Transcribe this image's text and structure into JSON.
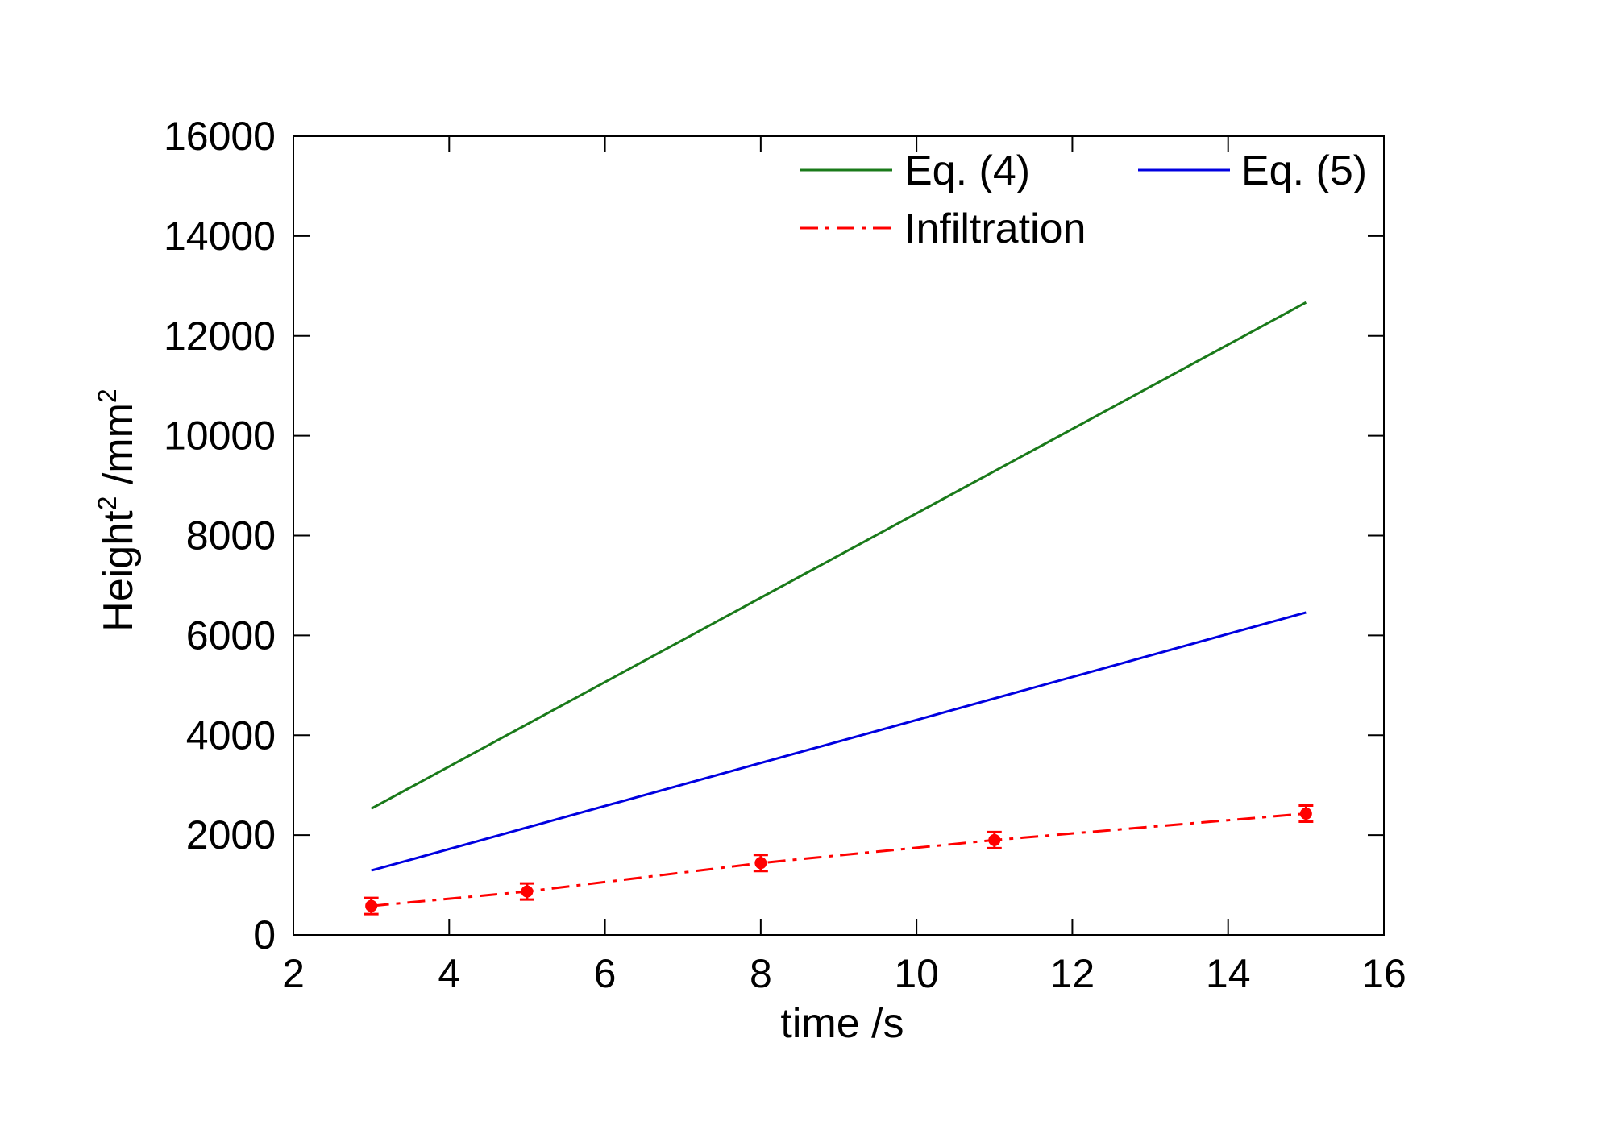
{
  "chart_data": {
    "type": "line",
    "title": "",
    "xlabel": "time /s",
    "ylabel": {
      "base": "Height",
      "base_sup": "2",
      "unit": " /mm",
      "unit_sup": "2"
    },
    "xlim": [
      2,
      16
    ],
    "ylim": [
      0,
      16000
    ],
    "xticks": [
      "2",
      "4",
      "6",
      "8",
      "10",
      "12",
      "14",
      "16"
    ],
    "yticks": [
      "0",
      "2000",
      "4000",
      "6000",
      "8000",
      "10000",
      "12000",
      "14000",
      "16000"
    ],
    "grid": false,
    "legend_position": "top-right",
    "series": [
      {
        "name": "Eq. (4)",
        "color": "#1a7a1a",
        "style": "solid",
        "x": [
          3,
          15
        ],
        "y": [
          2530,
          12670
        ]
      },
      {
        "name": "Eq. (5)",
        "color": "#0000e0",
        "style": "solid",
        "x": [
          3,
          15
        ],
        "y": [
          1290,
          6460
        ]
      },
      {
        "name": "Infiltration",
        "color": "#ff0000",
        "style": "dash-dot",
        "markers": true,
        "x": [
          3,
          5,
          8,
          11,
          15
        ],
        "y": [
          580,
          870,
          1440,
          1900,
          2430
        ]
      }
    ]
  }
}
